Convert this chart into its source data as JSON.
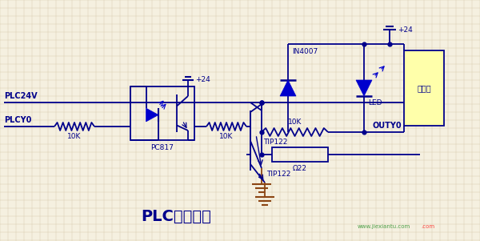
{
  "bg_color": "#f5f0e0",
  "grid_color": "#d4c9a8",
  "line_color": "#00008B",
  "title": "PLC驱动电路",
  "title_fontsize": 14,
  "title_color": "#00008B",
  "label_PLC24V": "PLC24V",
  "label_PLCY0": "PLCY0",
  "label_OUTY0": "OUTY0",
  "label_10K_1": "10K",
  "label_10K_2": "10K",
  "label_10K_3": "10K",
  "label_PC817": "PC817",
  "label_TIP122": "TIP122",
  "label_IN4007": "IN4007",
  "label_LED": "LED",
  "label_Omega22": "Ω22",
  "label_plus24_1": "+24",
  "label_plus24_2": "+24",
  "label_dianjici": "电磁阀",
  "watermark_color": "#228B22",
  "diode_color": "#0000CD",
  "ground_color": "#8B4513"
}
